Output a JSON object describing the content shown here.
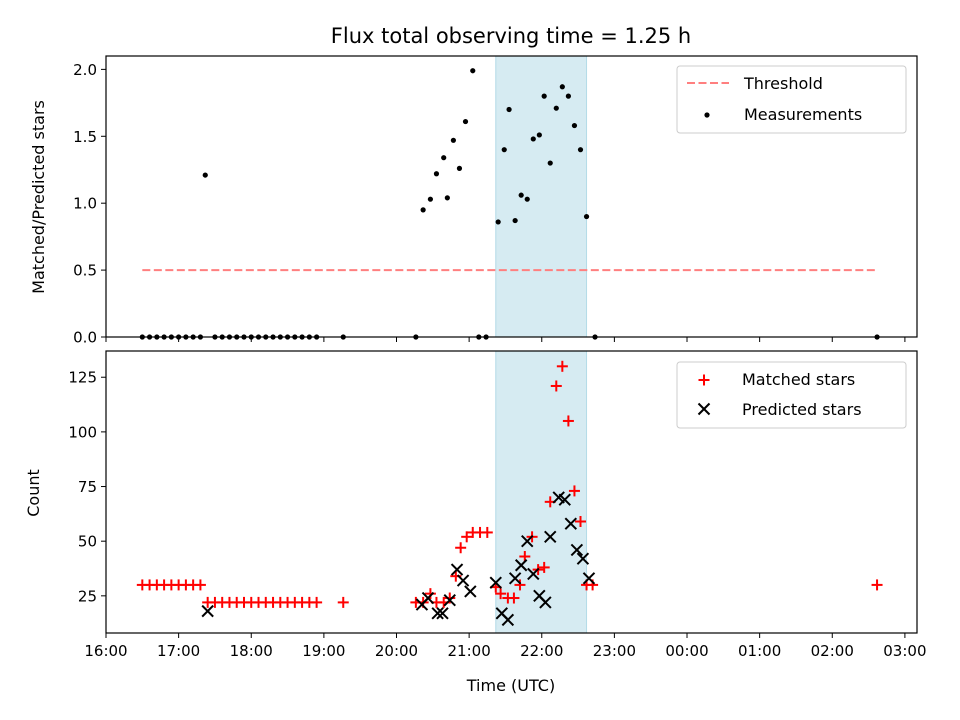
{
  "chart_data": [
    {
      "type": "scatter",
      "title": "Flux total observing time = 1.25 h",
      "xlabel": "",
      "ylabel": "Matched/Predicted stars",
      "xlim": [
        "16:00",
        "03:10"
      ],
      "ylim": [
        0,
        2.1
      ],
      "yticks": [
        "0.0",
        "0.5",
        "1.0",
        "1.5",
        "2.0"
      ],
      "shaded_interval": [
        "21:22",
        "22:37"
      ],
      "shade_color": "#add8e6",
      "legend_position": "upper right",
      "legend": [
        {
          "label": "Threshold",
          "marker": "dashed-line",
          "color": "#ff7f7f"
        },
        {
          "label": "Measurements",
          "marker": "dot",
          "color": "#000000"
        }
      ],
      "threshold": {
        "name": "Threshold",
        "value": 0.5,
        "x": [
          "16:30",
          "02:37"
        ],
        "color": "#ff7f7f"
      },
      "series": [
        {
          "name": "Measurements",
          "color": "#000000",
          "points": [
            [
              "16:30",
              0
            ],
            [
              "16:36",
              0
            ],
            [
              "16:42",
              0
            ],
            [
              "16:48",
              0
            ],
            [
              "16:54",
              0
            ],
            [
              "17:00",
              0
            ],
            [
              "17:06",
              0
            ],
            [
              "17:12",
              0
            ],
            [
              "17:18",
              0
            ],
            [
              "17:22",
              1.21
            ],
            [
              "17:30",
              0
            ],
            [
              "17:36",
              0
            ],
            [
              "17:42",
              0
            ],
            [
              "17:48",
              0
            ],
            [
              "17:54",
              0
            ],
            [
              "18:00",
              0
            ],
            [
              "18:06",
              0
            ],
            [
              "18:12",
              0
            ],
            [
              "18:18",
              0
            ],
            [
              "18:24",
              0
            ],
            [
              "18:30",
              0
            ],
            [
              "18:36",
              0
            ],
            [
              "18:42",
              0
            ],
            [
              "18:48",
              0
            ],
            [
              "18:54",
              0
            ],
            [
              "19:16",
              0
            ],
            [
              "20:16",
              0
            ],
            [
              "20:22",
              0.95
            ],
            [
              "20:28",
              1.03
            ],
            [
              "20:33",
              1.22
            ],
            [
              "20:39",
              1.34
            ],
            [
              "20:42",
              1.04
            ],
            [
              "20:47",
              1.47
            ],
            [
              "20:52",
              1.26
            ],
            [
              "20:57",
              1.61
            ],
            [
              "21:03",
              1.99
            ],
            [
              "21:08",
              0
            ],
            [
              "21:14",
              0
            ],
            [
              "21:24",
              0.86
            ],
            [
              "21:29",
              1.4
            ],
            [
              "21:33",
              1.7
            ],
            [
              "21:38",
              0.87
            ],
            [
              "21:43",
              1.06
            ],
            [
              "21:48",
              1.03
            ],
            [
              "21:53",
              1.48
            ],
            [
              "21:58",
              1.51
            ],
            [
              "22:02",
              1.8
            ],
            [
              "22:07",
              1.3
            ],
            [
              "22:12",
              1.71
            ],
            [
              "22:17",
              1.87
            ],
            [
              "22:22",
              1.8
            ],
            [
              "22:27",
              1.58
            ],
            [
              "22:32",
              1.4
            ],
            [
              "22:37",
              0.9
            ],
            [
              "22:44",
              0
            ],
            [
              "02:37",
              0
            ]
          ]
        }
      ]
    },
    {
      "type": "scatter",
      "title": "",
      "xlabel": "Time (UTC)",
      "ylabel": "Count",
      "xlim": [
        "16:00",
        "03:10"
      ],
      "ylim": [
        8,
        137
      ],
      "yticks": [
        "25",
        "50",
        "75",
        "100",
        "125"
      ],
      "xticks": [
        "16:00",
        "17:00",
        "18:00",
        "19:00",
        "20:00",
        "21:00",
        "22:00",
        "23:00",
        "00:00",
        "01:00",
        "02:00",
        "03:00"
      ],
      "shaded_interval": [
        "21:22",
        "22:37"
      ],
      "shade_color": "#add8e6",
      "legend_position": "upper right",
      "legend": [
        {
          "label": "Matched stars",
          "marker": "plus",
          "color": "#ff0000"
        },
        {
          "label": "Predicted stars",
          "marker": "x",
          "color": "#000000"
        }
      ],
      "series": [
        {
          "name": "Matched stars",
          "color": "#ff0000",
          "points": [
            [
              "16:30",
              30
            ],
            [
              "16:36",
              30
            ],
            [
              "16:42",
              30
            ],
            [
              "16:48",
              30
            ],
            [
              "16:54",
              30
            ],
            [
              "17:00",
              30
            ],
            [
              "17:06",
              30
            ],
            [
              "17:12",
              30
            ],
            [
              "17:18",
              30
            ],
            [
              "17:24",
              22
            ],
            [
              "17:30",
              22
            ],
            [
              "17:36",
              22
            ],
            [
              "17:42",
              22
            ],
            [
              "17:48",
              22
            ],
            [
              "17:54",
              22
            ],
            [
              "18:00",
              22
            ],
            [
              "18:06",
              22
            ],
            [
              "18:12",
              22
            ],
            [
              "18:18",
              22
            ],
            [
              "18:24",
              22
            ],
            [
              "18:30",
              22
            ],
            [
              "18:36",
              22
            ],
            [
              "18:42",
              22
            ],
            [
              "18:48",
              22
            ],
            [
              "18:54",
              22
            ],
            [
              "19:16",
              22
            ],
            [
              "20:16",
              22
            ],
            [
              "20:22",
              22
            ],
            [
              "20:28",
              26
            ],
            [
              "20:33",
              22
            ],
            [
              "20:39",
              22
            ],
            [
              "20:44",
              24
            ],
            [
              "20:49",
              34
            ],
            [
              "20:53",
              47
            ],
            [
              "20:58",
              52
            ],
            [
              "21:03",
              54
            ],
            [
              "21:09",
              54
            ],
            [
              "21:15",
              54
            ],
            [
              "21:22",
              29
            ],
            [
              "21:26",
              26
            ],
            [
              "21:32",
              24
            ],
            [
              "21:37",
              24
            ],
            [
              "21:42",
              30
            ],
            [
              "21:46",
              43
            ],
            [
              "21:52",
              52
            ],
            [
              "21:57",
              37
            ],
            [
              "22:02",
              38
            ],
            [
              "22:07",
              68
            ],
            [
              "22:12",
              121
            ],
            [
              "22:17",
              130
            ],
            [
              "22:22",
              105
            ],
            [
              "22:27",
              73
            ],
            [
              "22:32",
              59
            ],
            [
              "22:37",
              30
            ],
            [
              "22:42",
              30
            ],
            [
              "02:37",
              30
            ]
          ]
        },
        {
          "name": "Predicted stars",
          "color": "#000000",
          "points": [
            [
              "17:24",
              18
            ],
            [
              "20:21",
              21
            ],
            [
              "20:26",
              24
            ],
            [
              "20:34",
              17
            ],
            [
              "20:38",
              17
            ],
            [
              "20:44",
              23
            ],
            [
              "20:50",
              37
            ],
            [
              "20:55",
              32
            ],
            [
              "21:01",
              27
            ],
            [
              "21:22",
              31
            ],
            [
              "21:27",
              17
            ],
            [
              "21:32",
              14
            ],
            [
              "21:38",
              33
            ],
            [
              "21:43",
              39
            ],
            [
              "21:48",
              50
            ],
            [
              "21:53",
              35
            ],
            [
              "21:58",
              25
            ],
            [
              "22:03",
              22
            ],
            [
              "22:07",
              52
            ],
            [
              "22:14",
              70
            ],
            [
              "22:19",
              69
            ],
            [
              "22:24",
              58
            ],
            [
              "22:29",
              46
            ],
            [
              "22:34",
              42
            ],
            [
              "22:39",
              33
            ]
          ]
        }
      ]
    }
  ]
}
